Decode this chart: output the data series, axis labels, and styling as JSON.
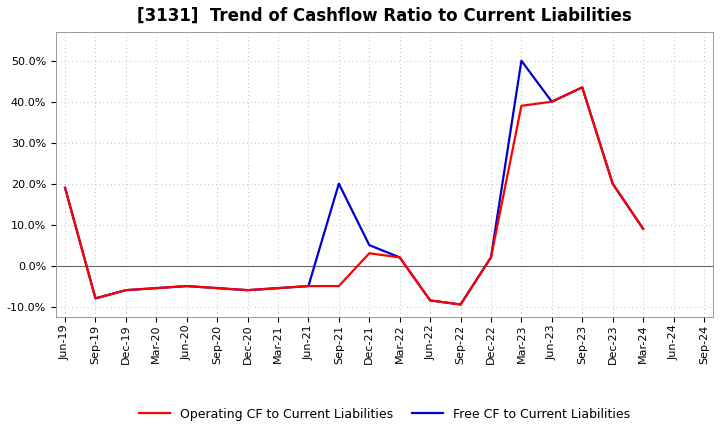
{
  "title": "[3131]  Trend of Cashflow Ratio to Current Liabilities",
  "x_labels": [
    "Jun-19",
    "Sep-19",
    "Dec-19",
    "Mar-20",
    "Jun-20",
    "Sep-20",
    "Dec-20",
    "Mar-21",
    "Jun-21",
    "Sep-21",
    "Dec-21",
    "Mar-22",
    "Jun-22",
    "Sep-22",
    "Dec-22",
    "Mar-23",
    "Jun-23",
    "Sep-23",
    "Dec-23",
    "Mar-24",
    "Jun-24",
    "Sep-24"
  ],
  "operating_cf": [
    19.0,
    -8.0,
    -6.0,
    -5.5,
    -5.0,
    -5.5,
    -6.0,
    -5.5,
    -5.0,
    -5.0,
    3.0,
    2.0,
    -8.5,
    -9.5,
    2.0,
    39.0,
    40.0,
    43.5,
    20.0,
    9.0,
    null,
    null
  ],
  "free_cf": [
    19.0,
    -8.0,
    -6.0,
    -5.5,
    -5.0,
    -5.5,
    -6.0,
    -5.5,
    -5.0,
    20.0,
    5.0,
    2.0,
    -8.5,
    -9.5,
    2.0,
    50.0,
    40.0,
    43.5,
    20.0,
    9.0,
    null,
    null
  ],
  "ylim": [
    -12.5,
    57.0
  ],
  "yticks": [
    -10.0,
    0.0,
    10.0,
    20.0,
    30.0,
    40.0,
    50.0
  ],
  "operating_color": "#ff0000",
  "free_color": "#0000cc",
  "background_color": "#ffffff",
  "plot_bg_color": "#ffffff",
  "grid_color": "#bbbbbb",
  "legend_operating": "Operating CF to Current Liabilities",
  "legend_free": "Free CF to Current Liabilities",
  "title_fontsize": 12,
  "axis_fontsize": 8,
  "legend_fontsize": 9,
  "linewidth": 1.6
}
